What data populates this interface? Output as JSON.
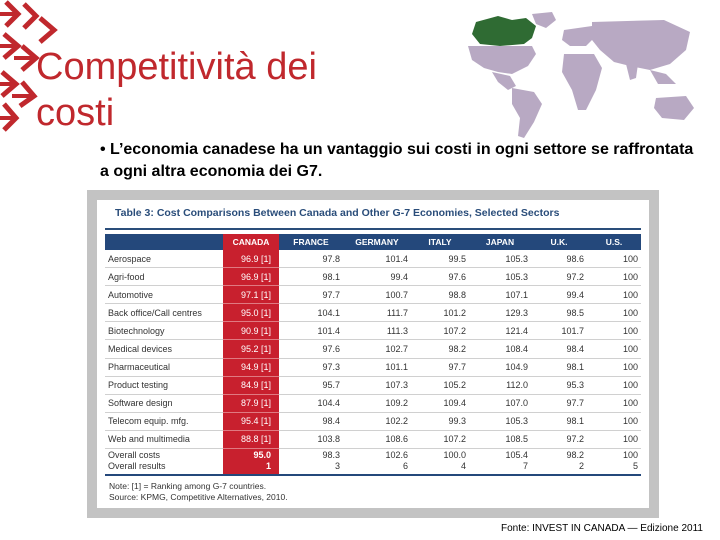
{
  "slide": {
    "title": "Competitività dei costi",
    "bullet": "• L’economia canadese ha un vantaggio sui costi in ogni settore se raffrontata a ogni altra economia dei G7.",
    "footer": "Fonte: INVEST IN CANADA — Edizione 2011"
  },
  "colors": {
    "accent_red": "#c0282d",
    "table_navy": "#24487b",
    "canada_red": "#c8202e",
    "map_gray": "#b8a9c3",
    "map_canada": "#2f6b33"
  },
  "table": {
    "caption": "Table 3: Cost Comparisons Between Canada and Other G-7 Economies, Selected Sectors",
    "headers": [
      "",
      "CANADA",
      "FRANCE",
      "GERMANY",
      "ITALY",
      "JAPAN",
      "U.K.",
      "U.S."
    ],
    "rows": [
      [
        "Aerospace",
        "96.9 [1]",
        "97.8",
        "101.4",
        "99.5",
        "105.3",
        "98.6",
        "100"
      ],
      [
        "Agri-food",
        "96.9 [1]",
        "98.1",
        "99.4",
        "97.6",
        "105.3",
        "97.2",
        "100"
      ],
      [
        "Automotive",
        "97.1 [1]",
        "97.7",
        "100.7",
        "98.8",
        "107.1",
        "99.4",
        "100"
      ],
      [
        "Back office/Call centres",
        "95.0 [1]",
        "104.1",
        "111.7",
        "101.2",
        "129.3",
        "98.5",
        "100"
      ],
      [
        "Biotechnology",
        "90.9 [1]",
        "101.4",
        "111.3",
        "107.2",
        "121.4",
        "101.7",
        "100"
      ],
      [
        "Medical devices",
        "95.2 [1]",
        "97.6",
        "102.7",
        "98.2",
        "108.4",
        "98.4",
        "100"
      ],
      [
        "Pharmaceutical",
        "94.9 [1]",
        "97.3",
        "101.1",
        "97.7",
        "104.9",
        "98.1",
        "100"
      ],
      [
        "Product testing",
        "84.9 [1]",
        "95.7",
        "107.3",
        "105.2",
        "112.0",
        "95.3",
        "100"
      ],
      [
        "Software design",
        "87.9 [1]",
        "104.4",
        "109.2",
        "109.4",
        "107.0",
        "97.7",
        "100"
      ],
      [
        "Telecom equip. mfg.",
        "95.4 [1]",
        "98.4",
        "102.2",
        "99.3",
        "105.3",
        "98.1",
        "100"
      ],
      [
        "Web and multimedia",
        "88.8 [1]",
        "103.8",
        "108.6",
        "107.2",
        "108.5",
        "97.2",
        "100"
      ]
    ],
    "overall": {
      "labels": [
        "Overall costs",
        "Overall results"
      ],
      "values": [
        [
          "95.0",
          "1"
        ],
        [
          "98.3",
          "3"
        ],
        [
          "102.6",
          "6"
        ],
        [
          "100.0",
          "4"
        ],
        [
          "105.4",
          "7"
        ],
        [
          "98.2",
          "2"
        ],
        [
          "100",
          "5"
        ]
      ]
    },
    "note": "Note: [1] = Ranking among G-7 countries.",
    "source": "Source: KPMG, Competitive Alternatives, 2010."
  }
}
